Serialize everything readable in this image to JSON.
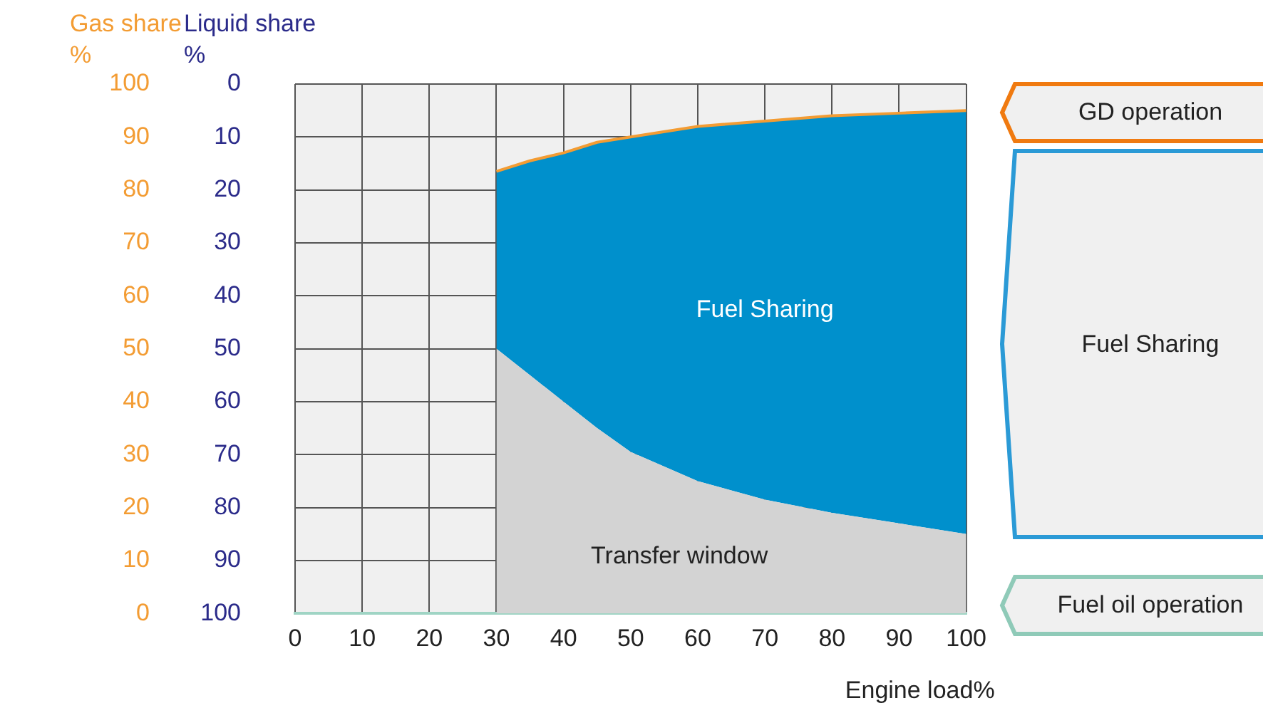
{
  "chart_data": {
    "type": "area",
    "x": [
      30,
      35,
      40,
      45,
      50,
      60,
      70,
      80,
      90,
      100
    ],
    "series": [
      {
        "name": "Transfer window",
        "color": "#d3d3d3",
        "values": [
          50,
          45,
          40,
          35,
          30.5,
          25,
          21.5,
          19,
          17,
          15
        ]
      },
      {
        "name": "Fuel Sharing",
        "color": "#0090cc",
        "values": [
          83.5,
          85.5,
          87,
          89,
          90,
          92,
          93,
          94,
          94.5,
          95
        ]
      },
      {
        "type": "line",
        "color": "#f39c33",
        "values": [
          83.5,
          85.5,
          87,
          89,
          90,
          92,
          93,
          94,
          94.5,
          95
        ]
      }
    ],
    "xlabel": "Engine load%",
    "ylabel": "Gas share %",
    "y2label": "Liquid share %",
    "xlim": [
      0,
      100
    ],
    "xticks": [
      0,
      10,
      20,
      30,
      40,
      50,
      60,
      70,
      80,
      90,
      100
    ],
    "ylim": [
      0,
      100
    ],
    "yticks": [
      0,
      10,
      20,
      30,
      40,
      50,
      60,
      70,
      80,
      90,
      100
    ],
    "y2lim": [
      100,
      0
    ],
    "y2ticks": [
      0,
      10,
      20,
      30,
      40,
      50,
      60,
      70,
      80,
      90,
      100
    ],
    "grid": true,
    "annotations": [
      "GD operation",
      "Fuel Sharing",
      "Fuel oil operation"
    ]
  }
}
